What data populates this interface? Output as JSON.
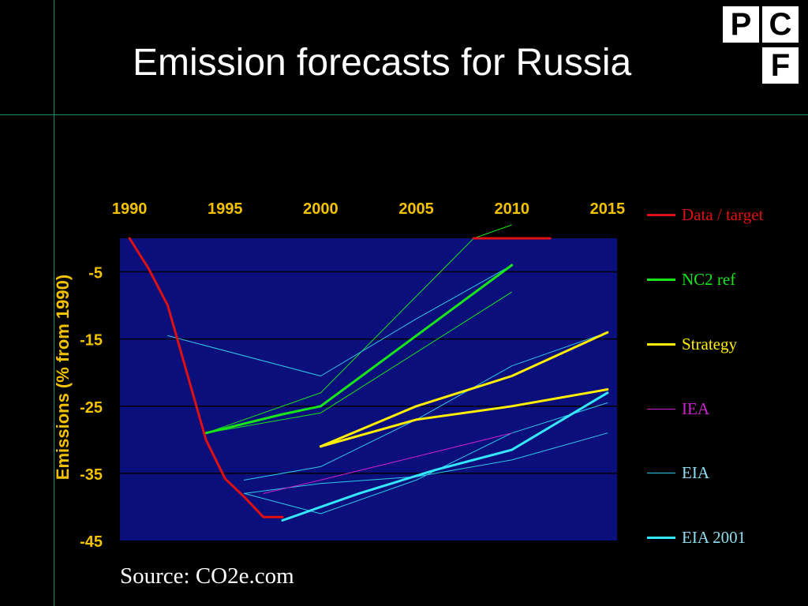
{
  "page": {
    "title": "Emission forecasts for Russia",
    "source": "Source: CO2e.com",
    "logo": {
      "letters": [
        "P",
        "C",
        "F"
      ]
    }
  },
  "chart_data": {
    "type": "line",
    "title": "Emission forecasts for Russia",
    "xlabel": "",
    "ylabel": "Emissions (% from 1990)",
    "xlim": [
      1989.5,
      2015.5
    ],
    "ylim": [
      -45,
      0
    ],
    "x_ticks": [
      1990,
      1995,
      2000,
      2005,
      2010,
      2015
    ],
    "x_tick_labels": [
      "1990",
      "1995",
      "2000",
      "2005",
      "2010",
      "2015"
    ],
    "y_ticks": [
      -5,
      -15,
      -25,
      -35,
      -45
    ],
    "y_tick_labels": [
      "-5",
      "-15",
      "-25",
      "-35",
      "-45"
    ],
    "x_axis_position": "top",
    "grid": "horizontal",
    "legend_position": "right",
    "plot_background": "#0a0f7c",
    "series": [
      {
        "name": "Data / target",
        "color": "#e01010",
        "width": 3,
        "segments": [
          [
            [
              1990,
              0
            ],
            [
              1991,
              -4.5
            ],
            [
              1992,
              -10
            ],
            [
              1993,
              -20
            ],
            [
              1994,
              -30
            ],
            [
              1995,
              -35.8
            ]
          ],
          [
            [
              1995,
              -35.8
            ],
            [
              1996,
              -38.5
            ],
            [
              1997,
              -41.5
            ],
            [
              1998,
              -41.5
            ]
          ],
          [
            [
              2008,
              0
            ],
            [
              2012,
              0
            ]
          ]
        ]
      },
      {
        "name": "NC2 ref",
        "color": "#19e619",
        "width": 3,
        "segments": [
          [
            [
              1994,
              -29
            ],
            [
              1998,
              -26.2
            ],
            [
              2000,
              -25
            ],
            [
              2005,
              -14.5
            ],
            [
              2010,
              -4
            ]
          ]
        ]
      },
      {
        "name": "Strategy",
        "color": "#ffee00",
        "width": 3,
        "segments": [
          [
            [
              2000,
              -31
            ],
            [
              2005,
              -25
            ],
            [
              2010,
              -20.5
            ],
            [
              2015,
              -14
            ]
          ],
          [
            [
              2000,
              -31
            ],
            [
              2005,
              -27
            ],
            [
              2010,
              -25
            ],
            [
              2015,
              -22.5
            ]
          ]
        ]
      },
      {
        "name": "IEA",
        "color": "#cc22cc",
        "width": 1,
        "segments": [
          [
            [
              1997,
              -38
            ],
            [
              2000,
              -36
            ],
            [
              2005,
              -32.5
            ],
            [
              2010,
              -29
            ]
          ]
        ]
      },
      {
        "name": "EIA",
        "color": "#30c8e8",
        "width": 1,
        "segments": [
          [
            [
              1992,
              -14.5
            ],
            [
              2000,
              -20.5
            ],
            [
              2005,
              -12
            ],
            [
              2010,
              -4
            ]
          ],
          [
            [
              1996,
              -36
            ],
            [
              2000,
              -34
            ],
            [
              2005,
              -27
            ],
            [
              2010,
              -19
            ],
            [
              2015,
              -14
            ]
          ],
          [
            [
              1996,
              -38
            ],
            [
              2000,
              -41
            ],
            [
              2005,
              -36
            ],
            [
              2010,
              -29
            ],
            [
              2015,
              -24.5
            ]
          ],
          [
            [
              1996,
              -38
            ],
            [
              2000,
              -36.5
            ],
            [
              2005,
              -35.5
            ],
            [
              2010,
              -33
            ],
            [
              2015,
              -29
            ]
          ]
        ]
      },
      {
        "name": "EIA 2001",
        "color": "#33e8ff",
        "width": 3,
        "segments": [
          [
            [
              1998,
              -42
            ],
            [
              2002,
              -38
            ],
            [
              2006,
              -34.5
            ],
            [
              2010,
              -31.5
            ],
            [
              2015,
              -23
            ]
          ]
        ]
      }
    ],
    "extra_lines": [
      {
        "color": "#19e619",
        "width": 1,
        "points": [
          [
            1994,
            -29
          ],
          [
            2000,
            -23
          ],
          [
            2008,
            0
          ],
          [
            2010,
            2
          ]
        ]
      },
      {
        "color": "#19e619",
        "width": 1,
        "points": [
          [
            1994,
            -29
          ],
          [
            2000,
            -26
          ],
          [
            2010,
            -8
          ]
        ]
      }
    ]
  }
}
